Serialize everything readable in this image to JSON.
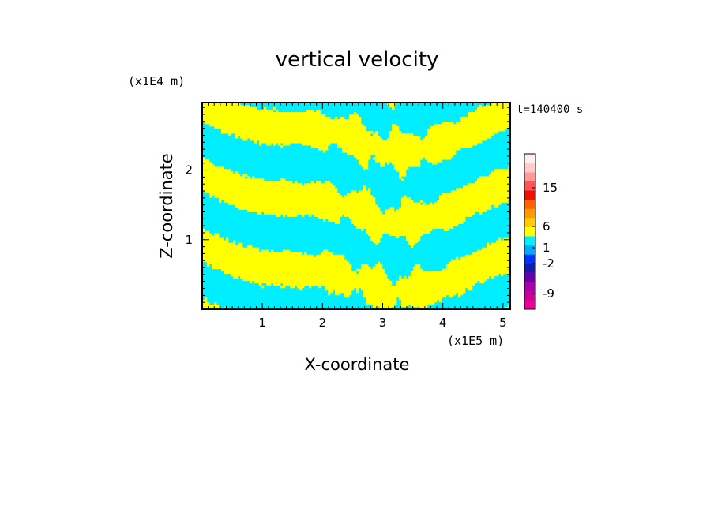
{
  "chart_data": {
    "type": "heatmap",
    "title": "vertical velocity",
    "time_label": "t=140400 s",
    "xlabel": "X-coordinate",
    "ylabel": "Z-coordinate",
    "x_unit": "(x1E5 m)",
    "y_unit": "(x1E4 m)",
    "xlim": [
      0,
      5.12
    ],
    "ylim": [
      0,
      2.97
    ],
    "x_ticks": [
      1,
      2,
      3,
      4,
      5
    ],
    "y_ticks": [
      1,
      2
    ],
    "colorbar": {
      "tick_labels": [
        {
          "value": 15,
          "label": "15"
        },
        {
          "value": 6,
          "label": "6"
        },
        {
          "value": 1,
          "label": "1"
        },
        {
          "value": -2,
          "label": "-2"
        },
        {
          "value": -9,
          "label": "-9"
        }
      ],
      "colors": [
        "#ee0099",
        "#cc0099",
        "#aa00aa",
        "#6600aa",
        "#1a1aaa",
        "#0033ff",
        "#00aaff",
        "#00eeff",
        "#ffff00",
        "#ffcc00",
        "#ff9900",
        "#ff6600",
        "#ee1100",
        "#ff5555",
        "#ff9999",
        "#ffcccc",
        "#fff0ee"
      ]
    },
    "dominant_colors": {
      "positive": "#ffff00",
      "negative": "#00eeff"
    }
  }
}
